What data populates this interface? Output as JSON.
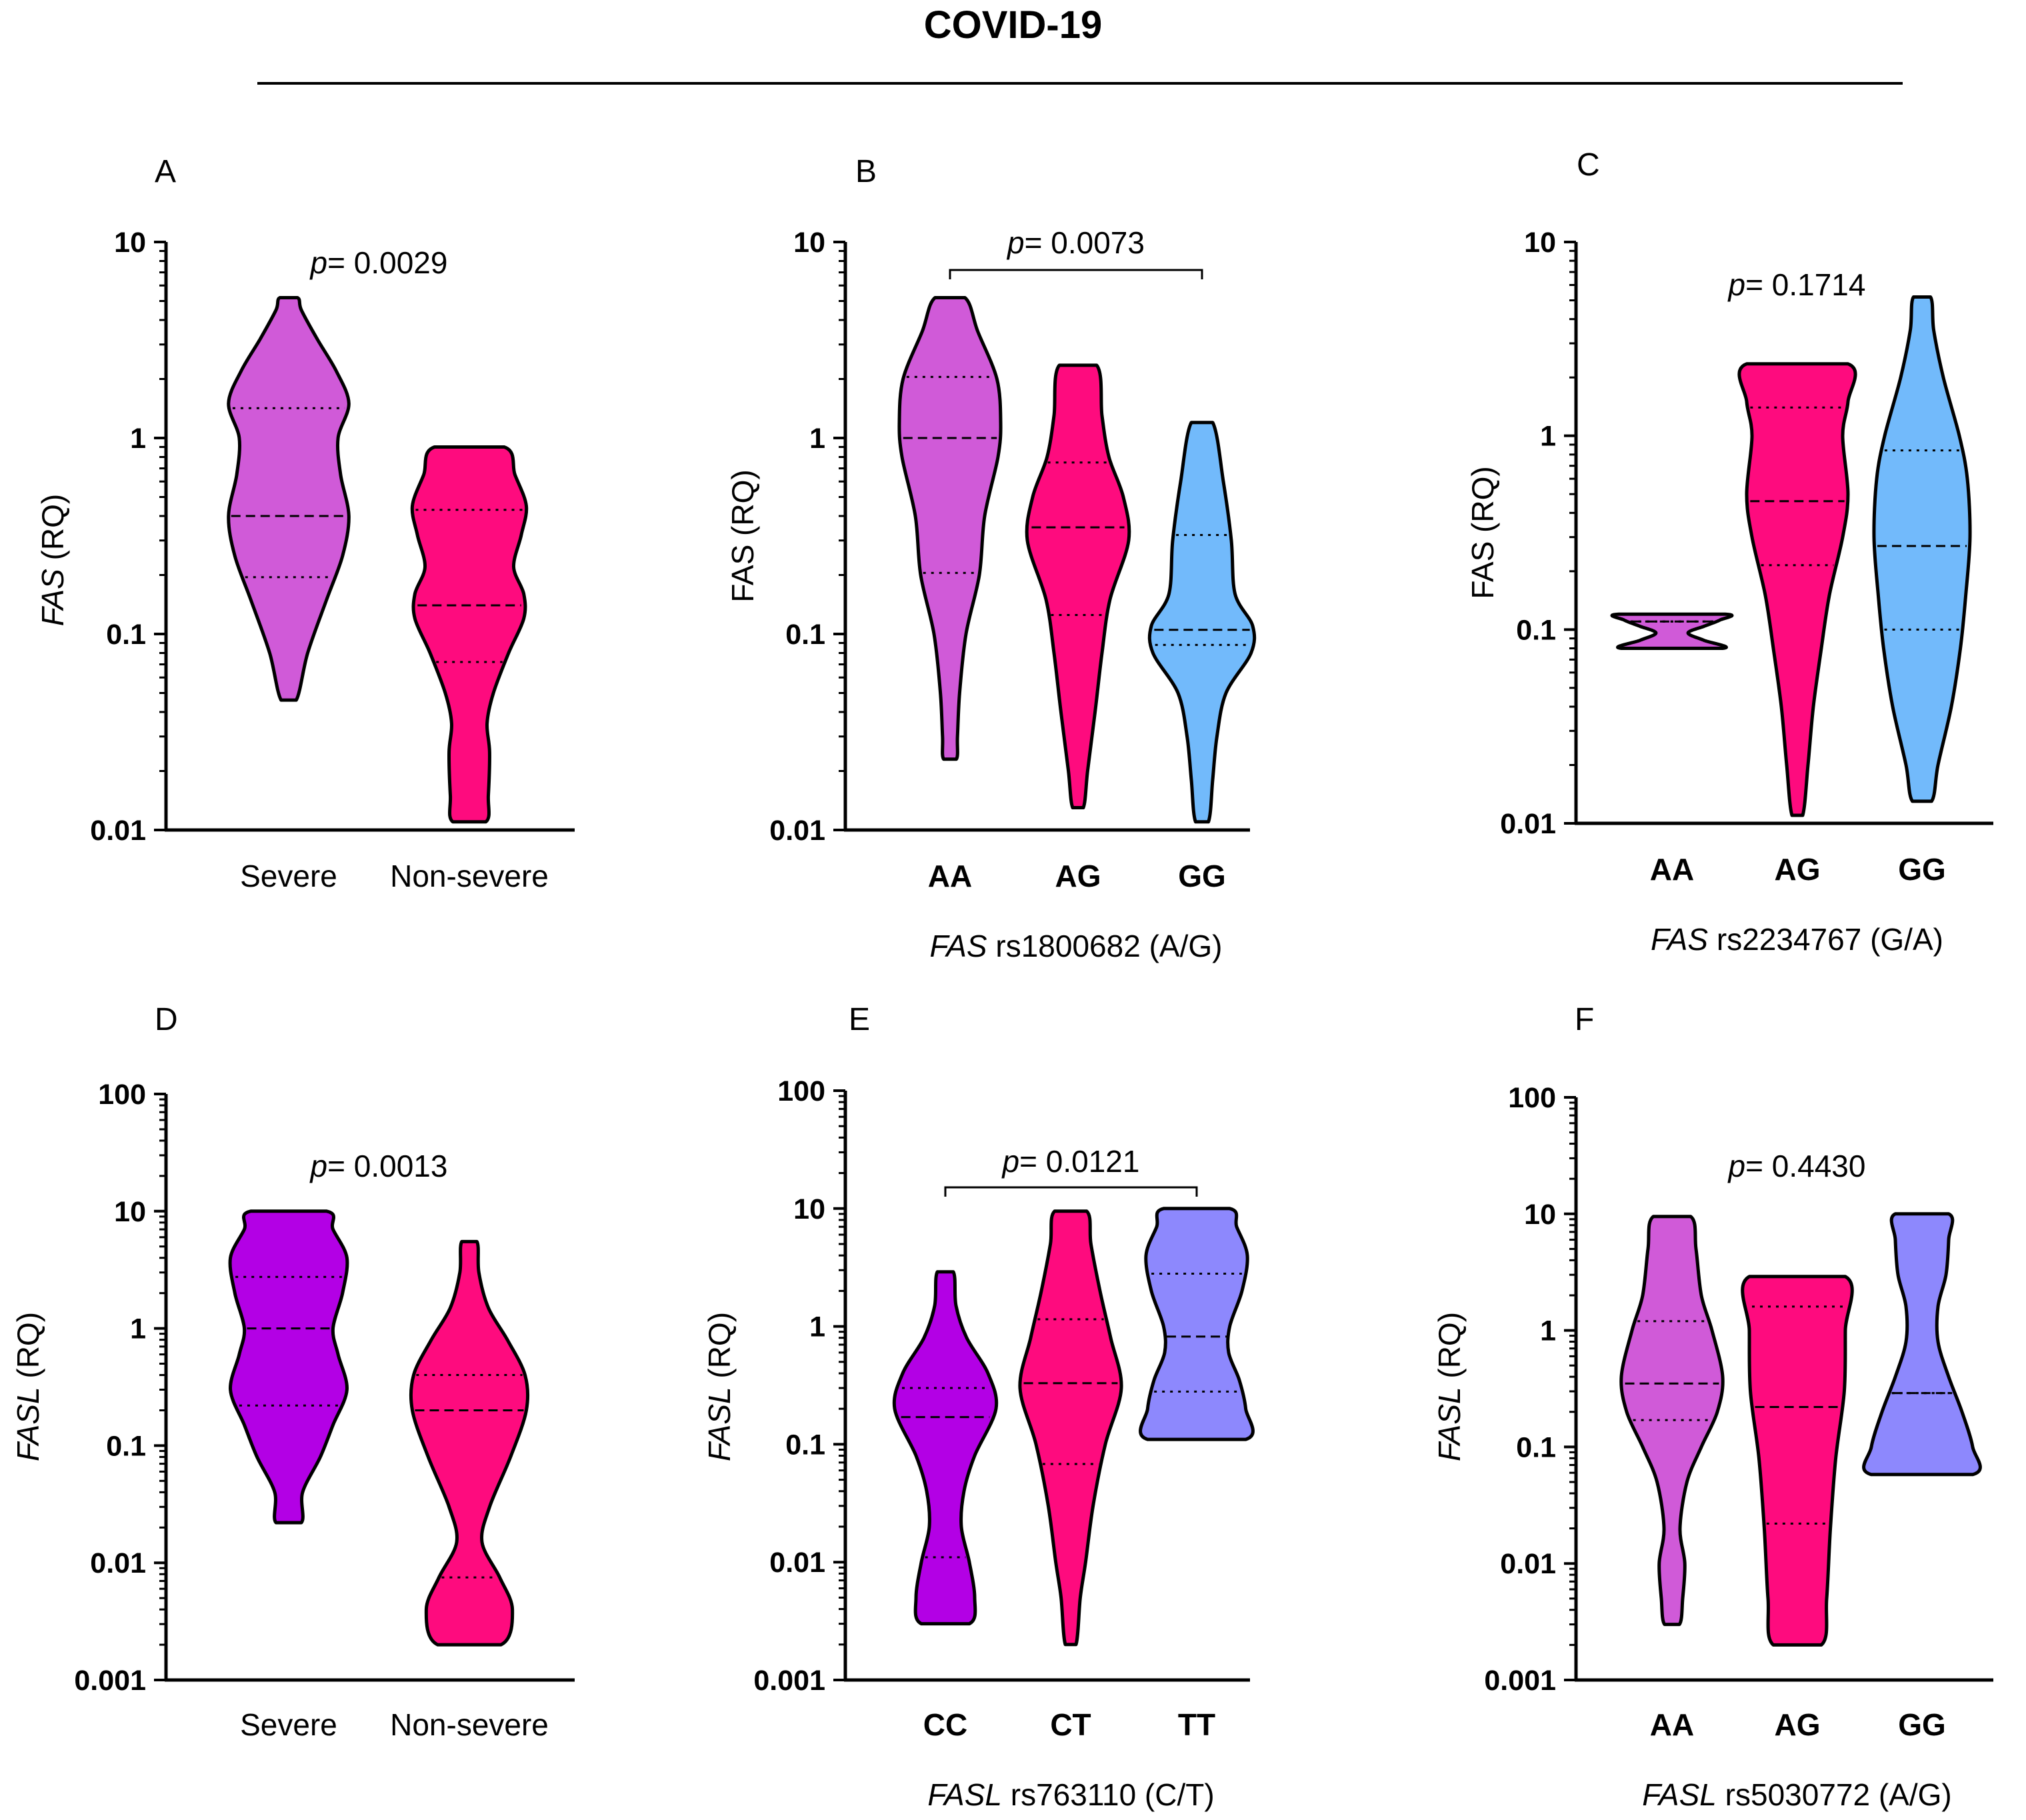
{
  "figure": {
    "title": "COVID-19"
  },
  "chart_data": [
    {
      "type": "violin",
      "panel": "A",
      "scale": "log",
      "ylim": [
        0.01,
        10
      ],
      "yticks": [
        "0.01",
        "0.1",
        "1",
        "10"
      ],
      "ylabel_italic": "FAS",
      "ylabel_rest": " (RQ)",
      "ylabel_upright": false,
      "category_bold": false,
      "xlabel_italic": "",
      "xlabel_rest": "",
      "p_italic": "p",
      "p_value": "= 0.0029",
      "bracket": false,
      "categories": [
        "Severe",
        "Non-severe"
      ],
      "series": [
        {
          "name": "Severe",
          "color": "#d05ad8",
          "min": 0.046,
          "max": 5.2,
          "median": 0.4,
          "q1": 0.195,
          "q3": 1.42,
          "profile": [
            [
              0.046,
              0.12
            ],
            [
              0.08,
              0.3
            ],
            [
              0.15,
              0.6
            ],
            [
              0.25,
              0.85
            ],
            [
              0.4,
              0.95
            ],
            [
              0.65,
              0.82
            ],
            [
              1.0,
              0.78
            ],
            [
              1.5,
              0.95
            ],
            [
              2.2,
              0.75
            ],
            [
              3.2,
              0.45
            ],
            [
              4.5,
              0.2
            ],
            [
              5.2,
              0.14
            ]
          ]
        },
        {
          "name": "Non-severe",
          "color": "#fe0b7e",
          "min": 0.011,
          "max": 0.9,
          "median": 0.14,
          "q1": 0.072,
          "q3": 0.43,
          "profile": [
            [
              0.011,
              0.26
            ],
            [
              0.015,
              0.3
            ],
            [
              0.025,
              0.32
            ],
            [
              0.035,
              0.28
            ],
            [
              0.05,
              0.38
            ],
            [
              0.08,
              0.62
            ],
            [
              0.12,
              0.86
            ],
            [
              0.16,
              0.86
            ],
            [
              0.22,
              0.7
            ],
            [
              0.32,
              0.82
            ],
            [
              0.45,
              0.9
            ],
            [
              0.65,
              0.72
            ],
            [
              0.9,
              0.55
            ]
          ]
        }
      ]
    },
    {
      "type": "violin",
      "panel": "B",
      "scale": "log",
      "ylim": [
        0.01,
        10
      ],
      "yticks": [
        "0.01",
        "0.1",
        "1",
        "10"
      ],
      "ylabel_italic": "",
      "ylabel_rest": "FAS (RQ)",
      "ylabel_upright": true,
      "category_bold": true,
      "xlabel_italic": "FAS",
      "xlabel_rest": " rs1800682 (A/G)",
      "p_italic": "p",
      "p_value": "= 0.0073",
      "bracket": true,
      "categories": [
        "AA",
        "AG",
        "GG"
      ],
      "series": [
        {
          "name": "AA",
          "color": "#d05ad8",
          "min": 0.023,
          "max": 5.2,
          "median": 1.0,
          "q1": 0.205,
          "q3": 2.05,
          "profile": [
            [
              0.023,
              0.12
            ],
            [
              0.03,
              0.14
            ],
            [
              0.05,
              0.18
            ],
            [
              0.1,
              0.3
            ],
            [
              0.2,
              0.55
            ],
            [
              0.4,
              0.65
            ],
            [
              0.8,
              0.9
            ],
            [
              1.2,
              0.95
            ],
            [
              2.0,
              0.88
            ],
            [
              3.5,
              0.52
            ],
            [
              5.2,
              0.28
            ]
          ]
        },
        {
          "name": "AG",
          "color": "#fe0b7e",
          "min": 0.013,
          "max": 2.35,
          "median": 0.35,
          "q1": 0.125,
          "q3": 0.75,
          "profile": [
            [
              0.013,
              0.1
            ],
            [
              0.02,
              0.18
            ],
            [
              0.04,
              0.32
            ],
            [
              0.08,
              0.45
            ],
            [
              0.15,
              0.6
            ],
            [
              0.3,
              0.95
            ],
            [
              0.5,
              0.85
            ],
            [
              0.8,
              0.58
            ],
            [
              1.3,
              0.45
            ],
            [
              2.35,
              0.35
            ]
          ]
        },
        {
          "name": "GG",
          "color": "#72bafb",
          "min": 0.011,
          "max": 1.2,
          "median": 0.105,
          "q1": 0.088,
          "q3": 0.32,
          "profile": [
            [
              0.011,
              0.12
            ],
            [
              0.018,
              0.2
            ],
            [
              0.03,
              0.28
            ],
            [
              0.05,
              0.45
            ],
            [
              0.08,
              0.92
            ],
            [
              0.11,
              0.95
            ],
            [
              0.16,
              0.62
            ],
            [
              0.3,
              0.55
            ],
            [
              0.6,
              0.4
            ],
            [
              1.2,
              0.2
            ]
          ]
        }
      ]
    },
    {
      "type": "violin",
      "panel": "C",
      "scale": "log",
      "ylim": [
        0.01,
        10
      ],
      "yticks": [
        "0.01",
        "0.1",
        "1",
        "10"
      ],
      "ylabel_italic": "",
      "ylabel_rest": "FAS (RQ)",
      "ylabel_upright": true,
      "category_bold": true,
      "xlabel_italic": "FAS",
      "xlabel_rest": " rs2234767 (G/A)",
      "p_italic": "p",
      "p_value": "= 0.1714",
      "bracket": false,
      "categories": [
        "AA",
        "AG",
        "GG"
      ],
      "series": [
        {
          "name": "AA",
          "color": "#d05ad8",
          "min": 0.08,
          "max": 0.12,
          "median": 0.11,
          "q1": 0.11,
          "q3": 0.11,
          "profile": [
            [
              0.08,
              0.95
            ],
            [
              0.088,
              0.6
            ],
            [
              0.096,
              0.3
            ],
            [
              0.104,
              0.6
            ],
            [
              0.112,
              0.9
            ],
            [
              0.12,
              1.0
            ]
          ]
        },
        {
          "name": "AG",
          "color": "#fe0b7e",
          "min": 0.011,
          "max": 2.35,
          "median": 0.46,
          "q1": 0.215,
          "q3": 1.4,
          "profile": [
            [
              0.011,
              0.1
            ],
            [
              0.02,
              0.2
            ],
            [
              0.04,
              0.3
            ],
            [
              0.08,
              0.45
            ],
            [
              0.15,
              0.6
            ],
            [
              0.3,
              0.85
            ],
            [
              0.5,
              0.95
            ],
            [
              1.0,
              0.85
            ],
            [
              1.5,
              0.95
            ],
            [
              2.35,
              0.95
            ]
          ]
        },
        {
          "name": "GG",
          "color": "#72bafb",
          "min": 0.013,
          "max": 5.2,
          "median": 0.27,
          "q1": 0.1,
          "q3": 0.84,
          "profile": [
            [
              0.013,
              0.18
            ],
            [
              0.02,
              0.3
            ],
            [
              0.04,
              0.55
            ],
            [
              0.08,
              0.72
            ],
            [
              0.15,
              0.82
            ],
            [
              0.3,
              0.9
            ],
            [
              0.6,
              0.85
            ],
            [
              1.0,
              0.7
            ],
            [
              2.0,
              0.4
            ],
            [
              3.5,
              0.22
            ],
            [
              5.2,
              0.16
            ]
          ]
        }
      ]
    },
    {
      "type": "violin",
      "panel": "D",
      "scale": "log",
      "ylim": [
        0.001,
        100
      ],
      "yticks": [
        "0.001",
        "0.01",
        "0.1",
        "1",
        "10",
        "100"
      ],
      "ylabel_italic": "FASL",
      "ylabel_rest": " (RQ)",
      "ylabel_upright": false,
      "category_bold": false,
      "xlabel_italic": "",
      "xlabel_rest": "",
      "p_italic": "p",
      "p_value": "= 0.0013",
      "bracket": false,
      "categories": [
        "Severe",
        "Non-severe"
      ],
      "series": [
        {
          "name": "Severe",
          "color": "#b300e5",
          "min": 0.022,
          "max": 10,
          "median": 1.0,
          "q1": 0.22,
          "q3": 2.75,
          "profile": [
            [
              0.022,
              0.2
            ],
            [
              0.04,
              0.22
            ],
            [
              0.08,
              0.5
            ],
            [
              0.15,
              0.7
            ],
            [
              0.3,
              0.92
            ],
            [
              0.6,
              0.78
            ],
            [
              1.0,
              0.7
            ],
            [
              2.0,
              0.85
            ],
            [
              4.0,
              0.92
            ],
            [
              7.0,
              0.7
            ],
            [
              10,
              0.6
            ]
          ]
        },
        {
          "name": "Non-severe",
          "color": "#fe0b7e",
          "min": 0.002,
          "max": 5.5,
          "median": 0.2,
          "q1": 0.0075,
          "q3": 0.4,
          "profile": [
            [
              0.002,
              0.5
            ],
            [
              0.004,
              0.68
            ],
            [
              0.0075,
              0.48
            ],
            [
              0.015,
              0.2
            ],
            [
              0.03,
              0.32
            ],
            [
              0.08,
              0.65
            ],
            [
              0.2,
              0.9
            ],
            [
              0.4,
              0.88
            ],
            [
              0.8,
              0.6
            ],
            [
              1.5,
              0.3
            ],
            [
              3.0,
              0.15
            ],
            [
              5.5,
              0.12
            ]
          ]
        }
      ]
    },
    {
      "type": "violin",
      "panel": "E",
      "scale": "log",
      "ylim": [
        0.001,
        100
      ],
      "yticks": [
        "0.001",
        "0.01",
        "0.1",
        "1",
        "10",
        "100"
      ],
      "ylabel_italic": "FASL",
      "ylabel_rest": " (RQ)",
      "ylabel_upright": false,
      "category_bold": true,
      "xlabel_italic": "FASL",
      "xlabel_rest": " rs763110 (C/T)",
      "p_italic": "p",
      "p_value": "= 0.0121",
      "bracket": true,
      "categories": [
        "CC",
        "CT",
        "TT"
      ],
      "series": [
        {
          "name": "CC",
          "color": "#b300e5",
          "min": 0.003,
          "max": 2.9,
          "median": 0.17,
          "q1": 0.011,
          "q3": 0.3,
          "profile": [
            [
              0.003,
              0.45
            ],
            [
              0.005,
              0.55
            ],
            [
              0.01,
              0.45
            ],
            [
              0.02,
              0.3
            ],
            [
              0.04,
              0.35
            ],
            [
              0.08,
              0.55
            ],
            [
              0.2,
              0.95
            ],
            [
              0.4,
              0.8
            ],
            [
              0.8,
              0.4
            ],
            [
              1.5,
              0.2
            ],
            [
              2.9,
              0.15
            ]
          ]
        },
        {
          "name": "CT",
          "color": "#fe0b7e",
          "min": 0.002,
          "max": 9.5,
          "median": 0.33,
          "q1": 0.068,
          "q3": 1.15,
          "profile": [
            [
              0.002,
              0.1
            ],
            [
              0.005,
              0.18
            ],
            [
              0.01,
              0.28
            ],
            [
              0.03,
              0.42
            ],
            [
              0.1,
              0.65
            ],
            [
              0.3,
              0.95
            ],
            [
              0.8,
              0.75
            ],
            [
              2.0,
              0.55
            ],
            [
              5.0,
              0.38
            ],
            [
              9.5,
              0.3
            ]
          ]
        },
        {
          "name": "TT",
          "color": "#8d88fd",
          "min": 0.11,
          "max": 10,
          "median": 0.82,
          "q1": 0.28,
          "q3": 2.8,
          "profile": [
            [
              0.11,
              0.92
            ],
            [
              0.2,
              0.92
            ],
            [
              0.35,
              0.8
            ],
            [
              0.6,
              0.6
            ],
            [
              1.0,
              0.62
            ],
            [
              2.0,
              0.85
            ],
            [
              4.0,
              0.95
            ],
            [
              7.0,
              0.75
            ],
            [
              10,
              0.62
            ]
          ]
        }
      ]
    },
    {
      "type": "violin",
      "panel": "F",
      "scale": "log",
      "ylim": [
        0.001,
        100
      ],
      "yticks": [
        "0.001",
        "0.01",
        "0.1",
        "1",
        "10",
        "100"
      ],
      "ylabel_italic": "FASL",
      "ylabel_rest": " (RQ)",
      "ylabel_upright": false,
      "category_bold": true,
      "xlabel_italic": "FASL",
      "xlabel_rest": " rs5030772 (A/G)",
      "p_italic": "p",
      "p_value": "= 0.4430",
      "bracket": false,
      "categories": [
        "AA",
        "AG",
        "GG"
      ],
      "series": [
        {
          "name": "AA",
          "color": "#d05ad8",
          "min": 0.003,
          "max": 9.5,
          "median": 0.35,
          "q1": 0.17,
          "q3": 1.2,
          "profile": [
            [
              0.003,
              0.14
            ],
            [
              0.005,
              0.2
            ],
            [
              0.01,
              0.24
            ],
            [
              0.02,
              0.15
            ],
            [
              0.05,
              0.28
            ],
            [
              0.1,
              0.55
            ],
            [
              0.2,
              0.85
            ],
            [
              0.4,
              0.95
            ],
            [
              1.0,
              0.75
            ],
            [
              2.0,
              0.55
            ],
            [
              5.0,
              0.45
            ],
            [
              9.5,
              0.35
            ]
          ]
        },
        {
          "name": "AG",
          "color": "#fe0b7e",
          "min": 0.002,
          "max": 2.9,
          "median": 0.22,
          "q1": 0.022,
          "q3": 1.6,
          "profile": [
            [
              0.002,
              0.45
            ],
            [
              0.005,
              0.55
            ],
            [
              0.02,
              0.62
            ],
            [
              0.08,
              0.72
            ],
            [
              0.3,
              0.88
            ],
            [
              1.0,
              0.9
            ],
            [
              2.9,
              0.9
            ]
          ]
        },
        {
          "name": "GG",
          "color": "#8d88fd",
          "min": 0.058,
          "max": 10,
          "median": 0.29,
          "q1": 0.29,
          "q3": 0.29,
          "profile": [
            [
              0.058,
              0.95
            ],
            [
              0.1,
              0.95
            ],
            [
              0.2,
              0.75
            ],
            [
              0.4,
              0.5
            ],
            [
              0.8,
              0.3
            ],
            [
              1.6,
              0.3
            ],
            [
              3.0,
              0.45
            ],
            [
              6.0,
              0.5
            ],
            [
              10,
              0.5
            ]
          ]
        }
      ]
    }
  ]
}
